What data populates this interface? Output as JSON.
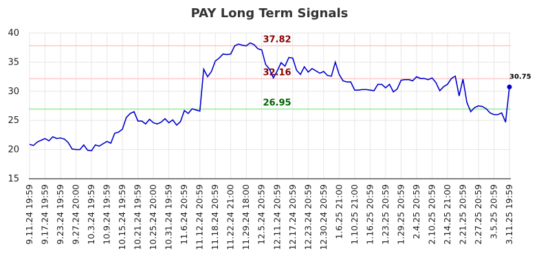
{
  "chart_data": {
    "type": "line",
    "title": "PAY Long Term Signals",
    "categories": [
      "9.11.24 19:59",
      null,
      null,
      null,
      "9.17.24 19:59",
      null,
      null,
      null,
      "9.23.24 19:59",
      null,
      null,
      null,
      "9.27.24 20:00",
      null,
      null,
      null,
      "10.3.24 19:59",
      null,
      null,
      null,
      "10.9.24 19:59",
      null,
      null,
      null,
      "10.15.24 19:59",
      null,
      null,
      null,
      "10.21.24 19:59",
      null,
      null,
      null,
      "10.25.24 20:00",
      null,
      null,
      null,
      "10.31.24 19:59",
      null,
      null,
      null,
      "11.6.24 20:59",
      null,
      null,
      null,
      "11.12.24 20:59",
      null,
      null,
      null,
      "11.18.24 20:59",
      null,
      null,
      null,
      "11.22.24 21:00",
      null,
      null,
      null,
      "11.29.24 18:00",
      null,
      null,
      null,
      "12.5.24 20:59",
      null,
      null,
      null,
      "12.11.24 20:59",
      null,
      null,
      null,
      "12.17.24 20:59",
      null,
      null,
      null,
      "12.23.24 20:59",
      null,
      null,
      null,
      "12.30.24 20:59",
      null,
      null,
      null,
      "1.6.25 21:00",
      null,
      null,
      null,
      "1.10.25 21:00",
      null,
      null,
      null,
      "1.16.25 20:59",
      null,
      null,
      null,
      "1.23.25 20:59",
      null,
      null,
      null,
      "1.29.25 20:59",
      null,
      null,
      null,
      "2.4.25 20:59",
      null,
      null,
      null,
      "2.10.25 20:59",
      null,
      null,
      null,
      "2.14.25 21:00",
      null,
      null,
      null,
      "2.21.25 20:59",
      null,
      null,
      null,
      "2.27.25 20:59",
      null,
      null,
      null,
      "3.5.25 20:59",
      null,
      null,
      null,
      "3.11.25 19:59"
    ],
    "values": [
      20.9,
      20.7,
      21.3,
      21.6,
      21.9,
      21.5,
      22.2,
      21.9,
      22.0,
      21.8,
      21.2,
      20.1,
      20.0,
      20.0,
      20.8,
      19.9,
      19.8,
      20.8,
      20.6,
      21.0,
      21.4,
      21.1,
      22.8,
      23.0,
      23.5,
      25.5,
      26.2,
      26.5,
      24.9,
      24.9,
      24.4,
      25.2,
      24.6,
      24.4,
      24.7,
      25.3,
      24.6,
      25.1,
      24.2,
      24.8,
      26.7,
      26.2,
      27.0,
      26.8,
      26.6,
      33.8,
      32.5,
      33.4,
      35.2,
      35.7,
      36.4,
      36.3,
      36.4,
      37.8,
      38.1,
      37.9,
      37.8,
      38.3,
      38.0,
      37.3,
      37.1,
      34.6,
      33.8,
      32.3,
      33.5,
      34.9,
      34.3,
      35.8,
      35.7,
      33.6,
      32.9,
      34.2,
      33.3,
      33.9,
      33.5,
      33.1,
      33.4,
      32.7,
      32.6,
      35.0,
      32.9,
      31.8,
      31.6,
      31.6,
      30.2,
      30.2,
      30.3,
      30.3,
      30.2,
      30.1,
      31.2,
      31.2,
      30.6,
      31.2,
      29.9,
      30.4,
      31.9,
      32.0,
      32.0,
      31.8,
      32.5,
      32.2,
      32.2,
      32.0,
      32.3,
      31.5,
      30.1,
      30.8,
      31.2,
      32.2,
      32.6,
      29.2,
      32.1,
      28.1,
      26.5,
      27.2,
      27.5,
      27.4,
      27.0,
      26.3,
      26.0,
      26.0,
      26.3,
      24.7,
      30.75
    ],
    "color": "#0000cc",
    "ylim": [
      15,
      40
    ],
    "yticks": [
      15,
      20,
      25,
      30,
      35,
      40
    ],
    "grid": true,
    "hlines": [
      {
        "value": 37.82,
        "color": "#ffc8c8",
        "label_color": "#8b0000"
      },
      {
        "value": 32.16,
        "color": "#ffc8c8",
        "label_color": "#8b0000"
      },
      {
        "value": 26.95,
        "color": "#90ee90",
        "label_color": "#006400"
      }
    ]
  }
}
